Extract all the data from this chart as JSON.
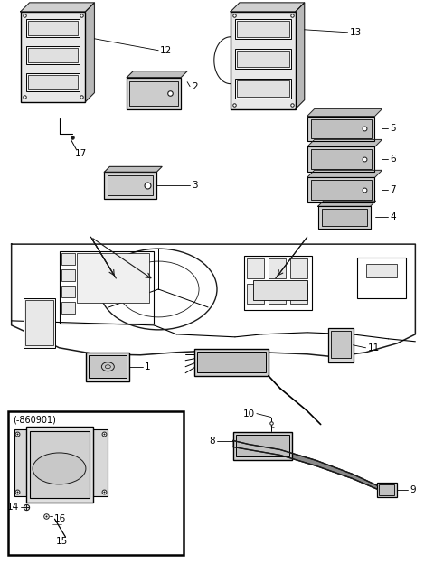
{
  "background_color": "#ffffff",
  "line_color": "#1a1a1a",
  "text_color": "#1a1a1a",
  "gray_light": "#cccccc",
  "gray_mid": "#aaaaaa",
  "gray_dark": "#888888",
  "inset_label": "(-860901)",
  "label_fs": 7.5
}
